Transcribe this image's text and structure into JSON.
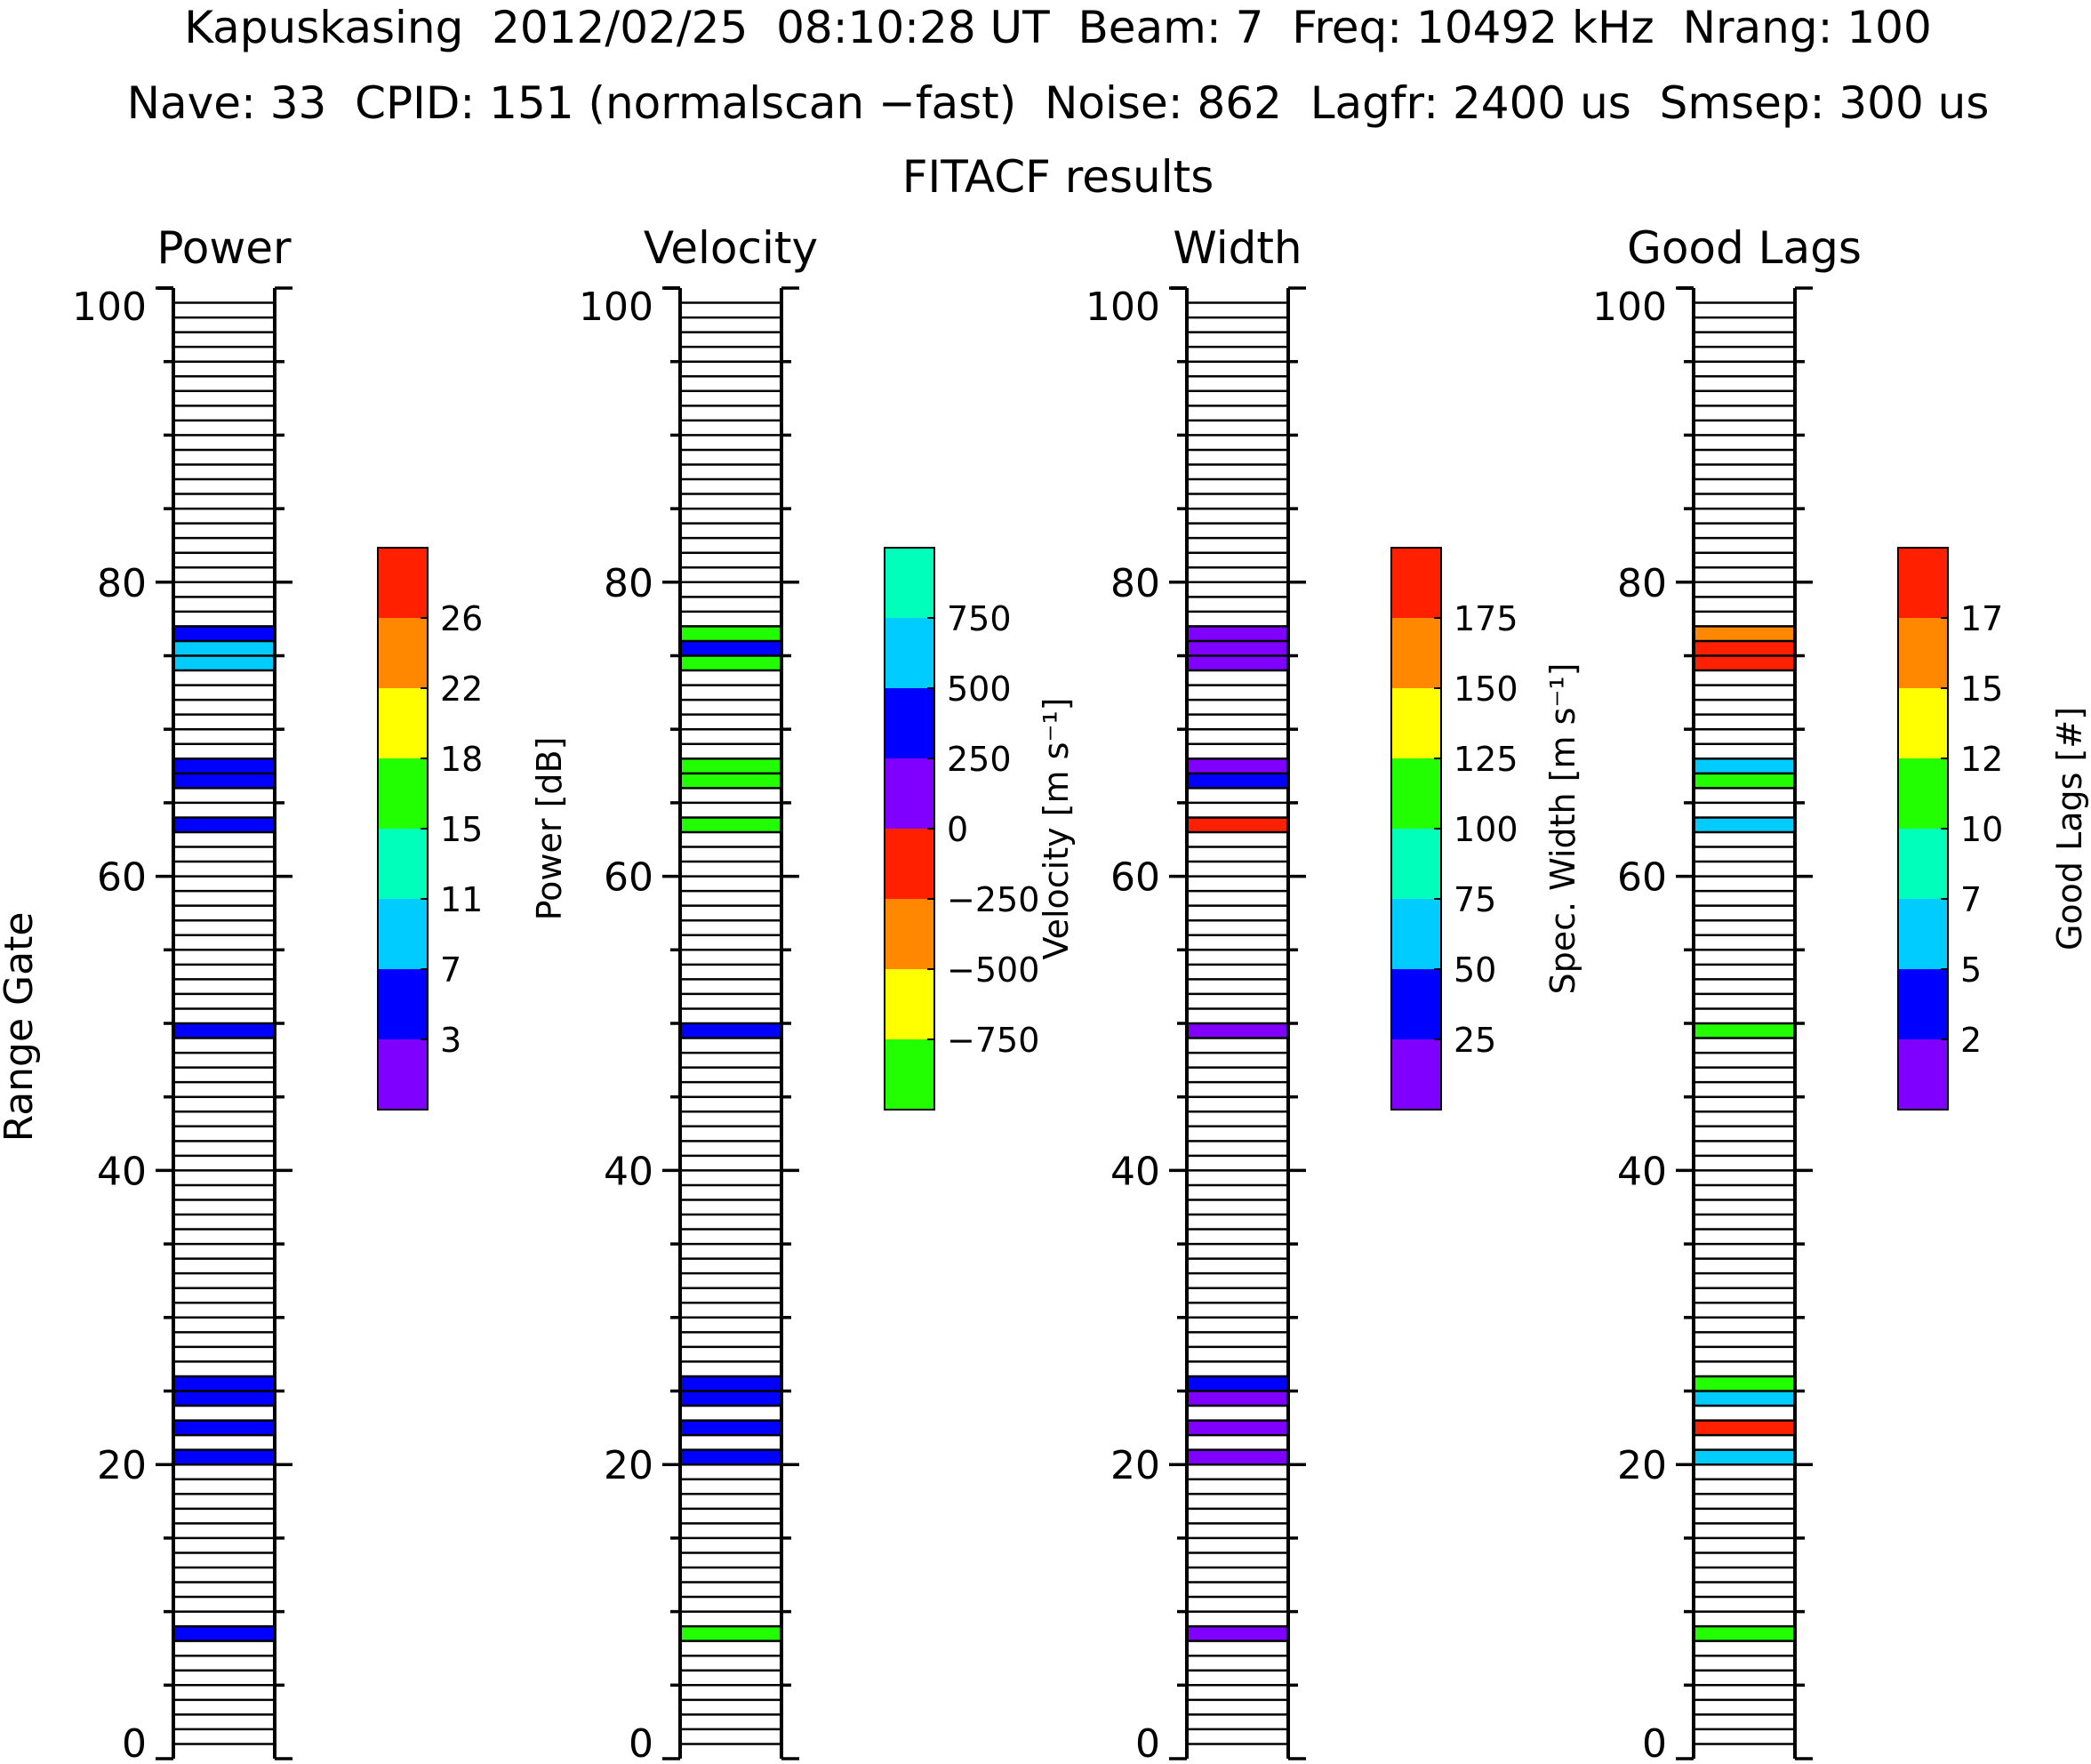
{
  "header": {
    "line1": "Kapuskasing  2012/02/25  08:10:28 UT  Beam: 7  Freq: 10492 kHz  Nrang: 100",
    "line2": "Nave: 33  CPID: 151 (normalscan −fast)  Noise: 862  Lagfr: 2400 us  Smsep: 300 us",
    "line3": "FITACF results"
  },
  "y_axis_label": "Range Gate",
  "colors": {
    "purple": "#8000ff",
    "blue": "#0000ff",
    "cyan": "#00ccff",
    "teal": "#00ffbb",
    "green": "#22ff00",
    "yellow": "#ffff00",
    "orange": "#ff8800",
    "red": "#ff2000"
  },
  "chart_data": [
    {
      "type": "bar",
      "title": "Power",
      "ylabel": "Range Gate",
      "ylim": [
        0,
        100
      ],
      "y_ticks": [
        "0",
        "20",
        "40",
        "60",
        "80",
        "100"
      ],
      "gates": [
        8,
        20,
        22,
        24,
        25,
        49,
        63,
        66,
        67,
        74,
        75,
        76
      ],
      "color_index": [
        1,
        1,
        1,
        1,
        1,
        1,
        1,
        1,
        1,
        2,
        2,
        1
      ],
      "colorbar": {
        "label": "Power [dB]",
        "colors": [
          "#8000ff",
          "#0000ff",
          "#00ccff",
          "#00ffbb",
          "#22ff00",
          "#ffff00",
          "#ff8800",
          "#ff2000"
        ],
        "tick_labels": [
          "3",
          "7",
          "11",
          "15",
          "18",
          "22",
          "26"
        ]
      }
    },
    {
      "type": "bar",
      "title": "Velocity",
      "ylim": [
        0,
        100
      ],
      "y_ticks": [
        "0",
        "20",
        "40",
        "60",
        "80",
        "100"
      ],
      "gates": [
        8,
        20,
        22,
        24,
        25,
        49,
        63,
        66,
        67,
        74,
        75,
        76
      ],
      "color_index": [
        0,
        5,
        5,
        5,
        5,
        5,
        0,
        0,
        0,
        0,
        5,
        0
      ],
      "colorbar": {
        "label": "Velocity [m s⁻¹]",
        "colors": [
          "#22ff00",
          "#ffff00",
          "#ff8800",
          "#ff2000",
          "#8000ff",
          "#0000ff",
          "#00ccff",
          "#00ffbb"
        ],
        "tick_labels": [
          "−750",
          "−500",
          "−250",
          "0",
          "250",
          "500",
          "750"
        ]
      }
    },
    {
      "type": "bar",
      "title": "Width",
      "ylim": [
        0,
        100
      ],
      "y_ticks": [
        "0",
        "20",
        "40",
        "60",
        "80",
        "100"
      ],
      "gates": [
        8,
        20,
        22,
        24,
        25,
        49,
        63,
        66,
        67,
        74,
        75,
        76
      ],
      "color_index": [
        0,
        0,
        0,
        0,
        1,
        0,
        7,
        1,
        0,
        0,
        0,
        0
      ],
      "colorbar": {
        "label": "Spec. Width [m s⁻¹]",
        "colors": [
          "#8000ff",
          "#0000ff",
          "#00ccff",
          "#00ffbb",
          "#22ff00",
          "#ffff00",
          "#ff8800",
          "#ff2000"
        ],
        "tick_labels": [
          "25",
          "50",
          "75",
          "100",
          "125",
          "150",
          "175"
        ]
      }
    },
    {
      "type": "bar",
      "title": "Good Lags",
      "ylim": [
        0,
        100
      ],
      "y_ticks": [
        "0",
        "20",
        "40",
        "60",
        "80",
        "100"
      ],
      "gates": [
        8,
        20,
        22,
        24,
        25,
        49,
        63,
        66,
        67,
        74,
        75,
        76
      ],
      "color_index": [
        4,
        2,
        7,
        2,
        4,
        4,
        2,
        4,
        2,
        7,
        7,
        6
      ],
      "colorbar": {
        "label": "Good Lags [#]",
        "colors": [
          "#8000ff",
          "#0000ff",
          "#00ccff",
          "#00ffbb",
          "#22ff00",
          "#ffff00",
          "#ff8800",
          "#ff2000"
        ],
        "tick_labels": [
          "2",
          "5",
          "7",
          "10",
          "12",
          "15",
          "17"
        ]
      }
    }
  ]
}
